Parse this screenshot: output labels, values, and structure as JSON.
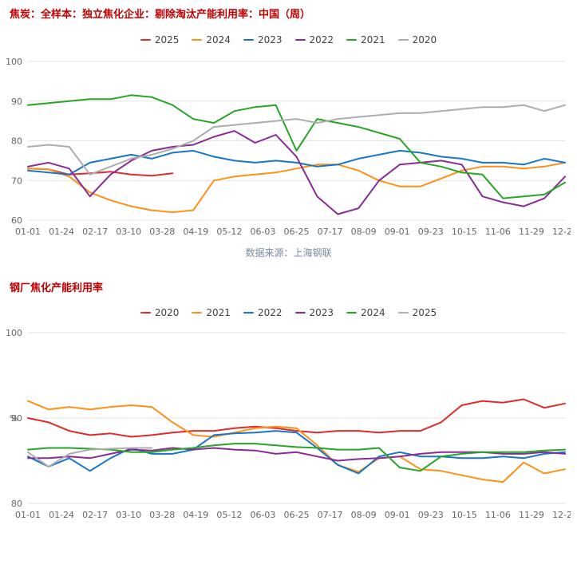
{
  "chart_data": [
    {
      "type": "line",
      "title": "焦炭：全样本：独立焦化企业：剔除淘汰产能利用率：中国（周）",
      "title_color": "#c00000",
      "source_note": "数据来源：上海钢联",
      "legend_position": "top-center",
      "grid": true,
      "categories": [
        "01-01",
        "01-24",
        "02-17",
        "03-10",
        "03-28",
        "04-19",
        "05-12",
        "06-03",
        "06-25",
        "07-17",
        "08-09",
        "09-01",
        "09-23",
        "10-15",
        "11-06",
        "11-29",
        "12-22"
      ],
      "ylim": [
        60,
        100
      ],
      "yticks": [
        60,
        70,
        80,
        90,
        100
      ],
      "x_count": 27,
      "series": [
        {
          "name": "2025",
          "color": "#e02b2b",
          "values": [
            73,
            72.8,
            71.5,
            71.8,
            72.2,
            71.5,
            71.2,
            71.8
          ]
        },
        {
          "name": "2024",
          "color": "#ff9018",
          "values": [
            73,
            72.8,
            71,
            67,
            65,
            63.5,
            62.5,
            62,
            62.5,
            70,
            71,
            71.5,
            72,
            73,
            74,
            74,
            72.5,
            70,
            68.5,
            68.5,
            70.5,
            72.5,
            73.5,
            73.5,
            73,
            73.5,
            74.5
          ]
        },
        {
          "name": "2023",
          "color": "#1876c8",
          "values": [
            72.5,
            72,
            71.5,
            74.5,
            75.5,
            76.5,
            75.5,
            77,
            77.5,
            76,
            75,
            74.5,
            75,
            74.5,
            73.5,
            74,
            75.5,
            76.5,
            77.5,
            77,
            76,
            75.5,
            74.5,
            74.5,
            74,
            75.5,
            74.5
          ]
        },
        {
          "name": "2022",
          "color": "#8a2b95",
          "values": [
            73.5,
            74.5,
            73,
            66,
            71.5,
            75,
            77.5,
            78.5,
            79,
            81,
            82.5,
            79.5,
            81.5,
            76,
            66,
            61.5,
            63,
            70,
            74,
            74.5,
            75,
            74,
            66,
            64.5,
            63.5,
            65.5,
            71
          ]
        },
        {
          "name": "2021",
          "color": "#27a527",
          "values": [
            89,
            89.5,
            90,
            90.5,
            90.5,
            91.5,
            91,
            89,
            85.5,
            84.5,
            87.5,
            88.5,
            89,
            77.5,
            85.5,
            84.5,
            83.5,
            82,
            80.5,
            74.5,
            73.5,
            72,
            71.5,
            65.5,
            66,
            66.5,
            69.5
          ]
        },
        {
          "name": "2020",
          "color": "#adadad",
          "values": [
            78.5,
            79,
            78.5,
            71.5,
            73.5,
            75.5,
            76.5,
            78,
            80,
            83.5,
            84,
            84.5,
            85,
            85.5,
            84.5,
            85.5,
            86,
            86.5,
            87,
            87,
            87.5,
            88,
            88.5,
            88.5,
            89,
            87.5,
            89
          ]
        }
      ]
    },
    {
      "type": "line",
      "title": "钢厂焦化产能利用率",
      "title_color": "#c00000",
      "ylabel": "%",
      "legend_position": "top-center",
      "grid": true,
      "categories": [
        "01-01",
        "01-24",
        "02-17",
        "03-10",
        "03-28",
        "04-19",
        "05-12",
        "06-03",
        "06-25",
        "07-17",
        "08-09",
        "09-01",
        "09-23",
        "10-15",
        "11-06",
        "11-29",
        "12-22"
      ],
      "ylim": [
        80,
        100
      ],
      "yticks": [
        80,
        90,
        100
      ],
      "x_count": 27,
      "series": [
        {
          "name": "2020",
          "color": "#e02b2b",
          "values": [
            90,
            89.5,
            88.5,
            88,
            88.2,
            87.8,
            88,
            88.3,
            88.5,
            88.5,
            88.8,
            89,
            88.8,
            88.5,
            88.3,
            88.5,
            88.5,
            88.3,
            88.5,
            88.5,
            89.5,
            91.5,
            92,
            91.8,
            92.2,
            91.2,
            91.7
          ]
        },
        {
          "name": "2021",
          "color": "#ff9018",
          "values": [
            92,
            91,
            91.3,
            91,
            91.3,
            91.5,
            91.3,
            89.5,
            88,
            87.8,
            88.3,
            88.8,
            89,
            88.8,
            86.8,
            84.5,
            83.7,
            85.3,
            85.5,
            84,
            83.8,
            83.3,
            82.8,
            82.5,
            84.8,
            83.5,
            84
          ]
        },
        {
          "name": "2022",
          "color": "#1876c8",
          "values": [
            85.5,
            84.3,
            85.3,
            83.8,
            85.3,
            86.5,
            85.8,
            85.8,
            86.3,
            88,
            88.2,
            88.3,
            88.5,
            88.3,
            86.5,
            84.5,
            83.5,
            85.5,
            86,
            85.5,
            85.5,
            85.3,
            85.3,
            85.5,
            85.3,
            85.8,
            86
          ]
        },
        {
          "name": "2023",
          "color": "#8a2b95",
          "values": [
            85.3,
            85.3,
            85.5,
            85.3,
            85.8,
            86.3,
            86.2,
            86.5,
            86.3,
            86.5,
            86.3,
            86.2,
            85.8,
            86,
            85.5,
            85,
            85.2,
            85.3,
            85.5,
            85.8,
            86,
            86,
            86,
            85.8,
            85.8,
            86,
            85.8
          ]
        },
        {
          "name": "2024",
          "color": "#27a527",
          "values": [
            86.3,
            86.5,
            86.5,
            86.4,
            86.3,
            86,
            86,
            86.3,
            86.5,
            86.8,
            87,
            87,
            86.8,
            86.6,
            86.5,
            86.3,
            86.3,
            86.5,
            84.2,
            83.8,
            85.5,
            85.8,
            86,
            86,
            86,
            86.2,
            86.3
          ]
        },
        {
          "name": "2025",
          "color": "#adadad",
          "values": [
            86,
            84.3,
            85.8,
            86.3,
            86.4,
            86.5,
            86.5
          ]
        }
      ]
    }
  ]
}
